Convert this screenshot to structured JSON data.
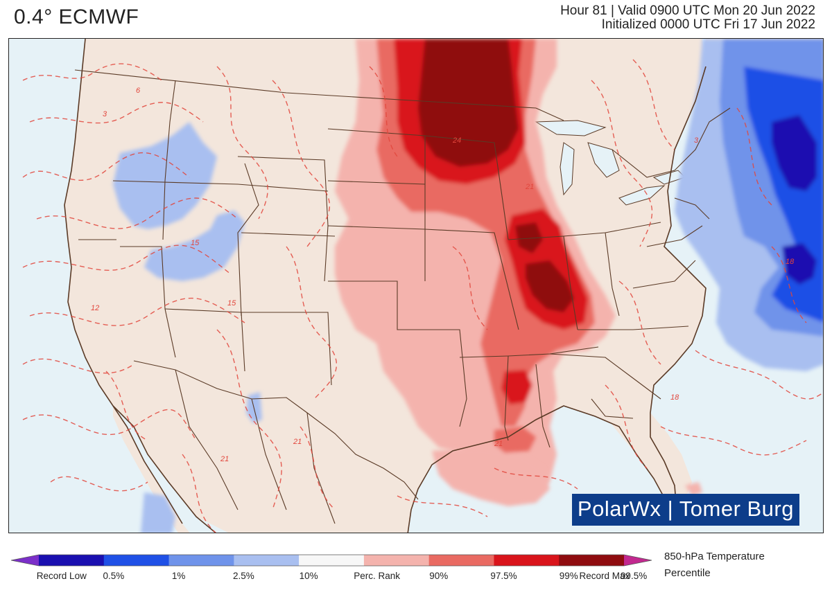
{
  "header": {
    "model": "0.4° ECMWF",
    "valid_line": "Hour 81 | Valid 0900 UTC Mon 20 Jun 2022",
    "init_line": "Initialized 0000 UTC Fri 17 Jun 2022"
  },
  "map": {
    "colors": {
      "land": "#f3e6dc",
      "ocean": "#e6f2f7",
      "border": "#5a3a26",
      "contour": "#e2463c"
    },
    "contour_labels": [
      "6",
      "12",
      "15",
      "15",
      "18",
      "21",
      "21",
      "21",
      "21",
      "24",
      "3",
      "3",
      "18"
    ],
    "credit": "PolarWx | Tomer Burg"
  },
  "legend": {
    "title_line1": "850-hPa Temperature",
    "title_line2": "Percentile",
    "bins": [
      {
        "color": "#7b2fc9"
      },
      {
        "color": "#1a0fb0"
      },
      {
        "color": "#1f50e6"
      },
      {
        "color": "#6f93ea"
      },
      {
        "color": "#a9bff0"
      },
      {
        "color": "#f7f7f7"
      },
      {
        "color": "#f4b3ad"
      },
      {
        "color": "#e96a62"
      },
      {
        "color": "#d9141b"
      },
      {
        "color": "#8f0c0f"
      },
      {
        "color": "#c2288f"
      }
    ],
    "labels": [
      "Record Low",
      "0.5%",
      "1%",
      "2.5%",
      "10%",
      "Perc. Rank",
      "90%",
      "97.5%",
      "99%",
      "99.5%",
      "Record Max"
    ]
  }
}
